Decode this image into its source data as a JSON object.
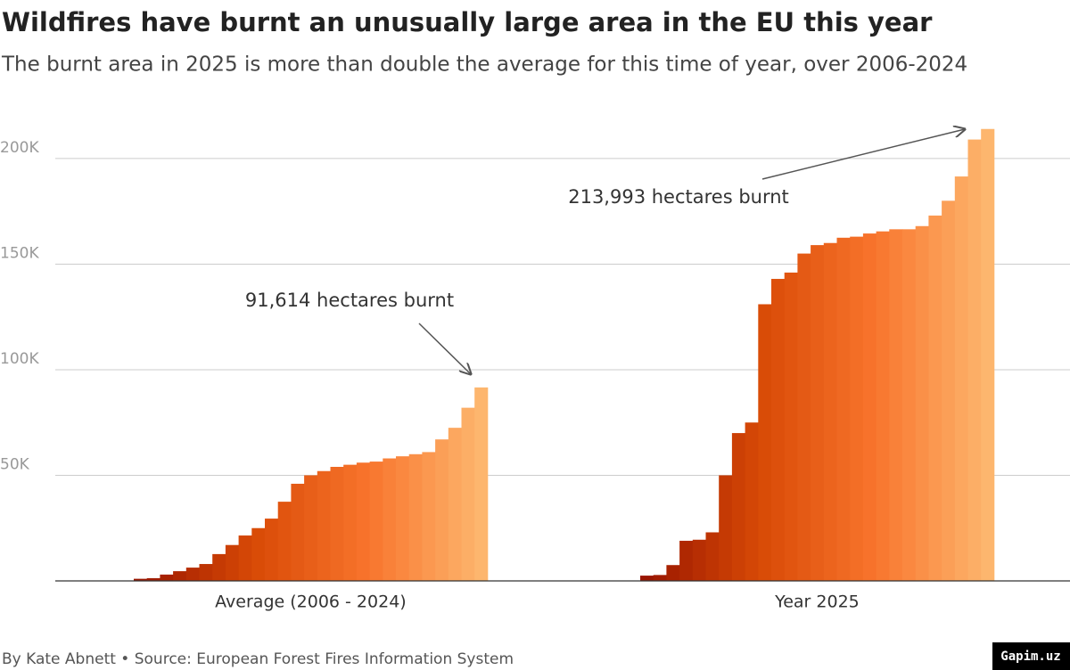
{
  "chart_data": {
    "type": "bar",
    "title": "Wildfires have burnt an unusually large area in the EU this year",
    "subtitle": "The burnt area in 2025 is more than double the average for this time of year, over 2006-2024",
    "groups": [
      {
        "name": "Average (2006 - 2024)",
        "values": [
          1000,
          1300,
          3000,
          4600,
          6300,
          8000,
          12700,
          17000,
          21500,
          25000,
          29500,
          37500,
          46000,
          50000,
          52000,
          54000,
          55000,
          56000,
          56500,
          58000,
          59000,
          60000,
          61000,
          67000,
          72500,
          82000,
          91614
        ]
      },
      {
        "name": "Year 2025",
        "values": [
          2500,
          2800,
          7500,
          19000,
          19500,
          23000,
          50000,
          70000,
          75000,
          131000,
          143000,
          146000,
          155000,
          159000,
          160000,
          162500,
          163000,
          164500,
          165500,
          166500,
          166500,
          168000,
          173000,
          180000,
          191500,
          209000,
          213993
        ]
      }
    ],
    "color_scale": [
      "#9a1600",
      "#d84a06",
      "#f8742c",
      "#fdb66e"
    ],
    "ylim": [
      0,
      216000
    ],
    "yticks": [
      {
        "value": 50000,
        "label": "50K"
      },
      {
        "value": 100000,
        "label": "100K"
      },
      {
        "value": 150000,
        "label": "150K"
      },
      {
        "value": 200000,
        "label": "200K"
      }
    ],
    "grid": true,
    "annotations": [
      "91,614 hectares burnt",
      "213,993 hectares burnt"
    ],
    "footer": "By Kate Abnett • Source: European Forest Fires Information System"
  },
  "watermark": "Gapim.uz"
}
